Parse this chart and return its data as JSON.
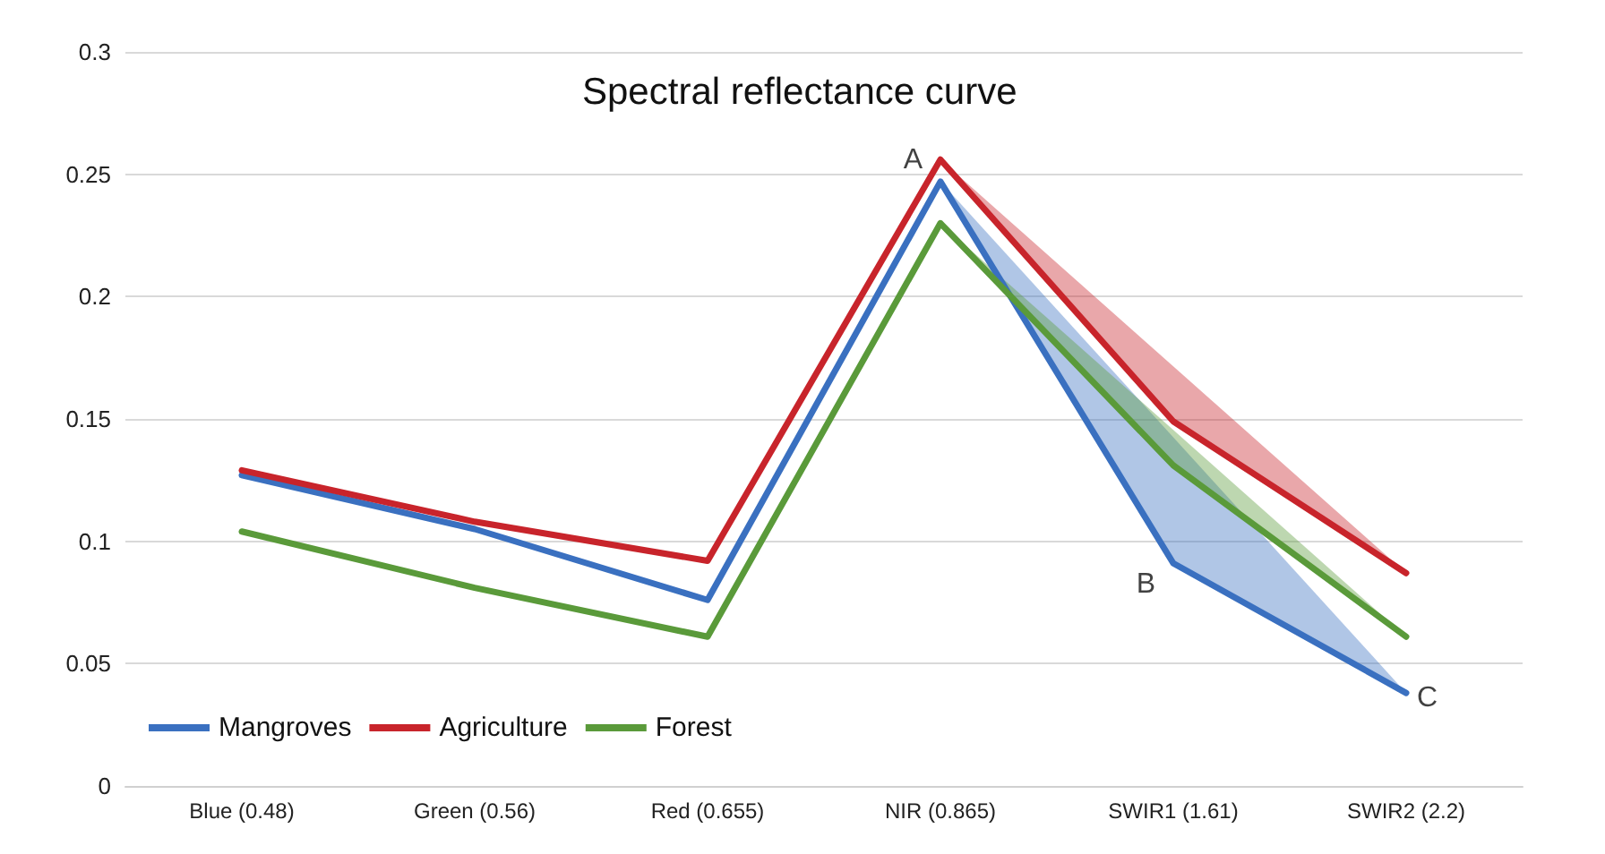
{
  "chart_data": {
    "type": "line",
    "title": "Spectral reflectance curve",
    "categories": [
      "Blue (0.48)",
      "Green (0.56)",
      "Red (0.655)",
      "NIR (0.865)",
      "SWIR1 (1.61)",
      "SWIR2 (2.2)"
    ],
    "series": [
      {
        "name": "Mangroves",
        "color": "#3a70c0",
        "values": [
          0.127,
          0.105,
          0.076,
          0.247,
          0.091,
          0.038
        ],
        "lower": [
          null,
          null,
          null,
          0.247,
          0.091,
          0.038
        ],
        "upper": [
          null,
          null,
          null,
          0.247,
          0.1425,
          0.038
        ]
      },
      {
        "name": "Agriculture",
        "color": "#c8242b",
        "values": [
          0.129,
          0.108,
          0.092,
          0.256,
          0.149,
          0.087
        ],
        "lower": [
          null,
          null,
          null,
          0.256,
          0.149,
          0.087
        ],
        "upper": [
          null,
          null,
          null,
          0.256,
          0.1715,
          0.087
        ]
      },
      {
        "name": "Forest",
        "color": "#5a9a3a",
        "values": [
          0.104,
          0.081,
          0.061,
          0.23,
          0.131,
          0.061
        ],
        "lower": [
          null,
          null,
          null,
          0.23,
          0.131,
          0.061
        ],
        "upper": [
          null,
          null,
          null,
          0.23,
          0.1455,
          0.061
        ]
      }
    ],
    "ylim": [
      0,
      0.3
    ],
    "yticks": [
      0,
      0.05,
      0.1,
      0.15,
      0.2,
      0.25,
      0.3
    ],
    "annotations": [
      {
        "text": "A",
        "x": "NIR (0.865)",
        "y": 0.247
      },
      {
        "text": "B",
        "x": "SWIR1 (1.61)",
        "y": 0.091
      },
      {
        "text": "C",
        "x": "SWIR2 (2.2)",
        "y": 0.036
      }
    ],
    "grid": "y",
    "legend": "bottom left",
    "marker": "none",
    "line_style": "solid"
  }
}
